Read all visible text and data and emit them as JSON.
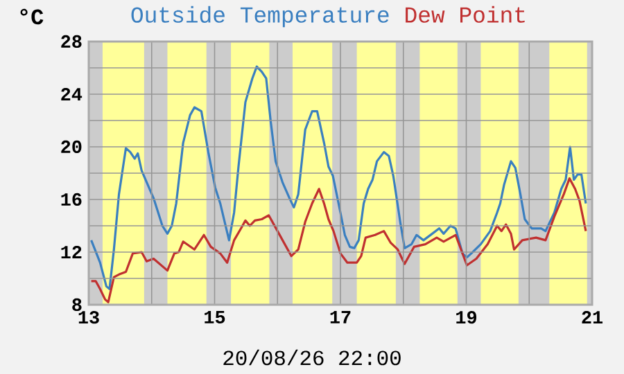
{
  "chart_data": {
    "type": "line",
    "ylabel": "°C",
    "annotations": [
      "20/08/26 22:00"
    ],
    "legend": "top",
    "grid": true,
    "xlim": [
      13,
      21
    ],
    "ylim": [
      8,
      28
    ],
    "xticks": [
      13,
      {
        "value": 14,
        "label": null
      },
      15,
      {
        "value": 16,
        "label": null
      },
      17,
      {
        "value": 18,
        "label": null
      },
      19,
      {
        "value": 20,
        "label": null
      },
      21
    ],
    "yticks": [
      8,
      {
        "value": 10,
        "label": null
      },
      12,
      {
        "value": 14,
        "label": null
      },
      16,
      {
        "value": 18,
        "label": null
      },
      20,
      {
        "value": 22,
        "label": null
      },
      24,
      {
        "value": 26,
        "label": null
      },
      28
    ],
    "bands": [
      {
        "axis": "x",
        "from": 13.22,
        "to": 13.88,
        "color": "#ffff99"
      },
      {
        "axis": "x",
        "from": 14.25,
        "to": 14.87,
        "color": "#ffff99"
      },
      {
        "axis": "x",
        "from": 15.26,
        "to": 15.87,
        "color": "#ffff99"
      },
      {
        "axis": "x",
        "from": 16.24,
        "to": 16.87,
        "color": "#ffff99"
      },
      {
        "axis": "x",
        "from": 17.26,
        "to": 17.88,
        "color": "#ffff99"
      },
      {
        "axis": "x",
        "from": 18.26,
        "to": 18.86,
        "color": "#ffff99"
      },
      {
        "axis": "x",
        "from": 19.23,
        "to": 19.83,
        "color": "#ffff99"
      },
      {
        "axis": "x",
        "from": 20.32,
        "to": 20.92,
        "color": "#ffff99"
      }
    ],
    "series": [
      {
        "name": "Outside Temperature",
        "color": "#3a7fc0",
        "x": [
          13.04,
          13.18,
          13.28,
          13.33,
          13.4,
          13.48,
          13.59,
          13.66,
          13.73,
          13.78,
          13.84,
          14.03,
          14.17,
          14.25,
          14.32,
          14.39,
          14.5,
          14.61,
          14.68,
          14.79,
          14.9,
          15.01,
          15.09,
          15.16,
          15.23,
          15.31,
          15.38,
          15.49,
          15.6,
          15.67,
          15.75,
          15.82,
          15.89,
          15.97,
          16.08,
          16.19,
          16.26,
          16.33,
          16.44,
          16.55,
          16.63,
          16.74,
          16.81,
          16.88,
          17.0,
          17.07,
          17.15,
          17.22,
          17.29,
          17.37,
          17.44,
          17.51,
          17.58,
          17.69,
          17.77,
          17.84,
          17.95,
          18.02,
          18.13,
          18.21,
          18.32,
          18.46,
          18.57,
          18.64,
          18.75,
          18.83,
          18.94,
          19.01,
          19.08,
          19.23,
          19.38,
          19.49,
          19.54,
          19.6,
          19.71,
          19.78,
          19.86,
          19.93,
          20.04,
          20.19,
          20.26,
          20.4,
          20.51,
          20.58,
          20.65,
          20.71,
          20.77,
          20.83,
          20.9
        ],
        "values": [
          12.9,
          11.2,
          9.4,
          9.2,
          12.2,
          16.4,
          19.9,
          19.6,
          19.1,
          19.5,
          18.2,
          16.1,
          14.0,
          13.4,
          14.0,
          15.7,
          20.3,
          22.4,
          23.0,
          22.7,
          19.6,
          16.9,
          15.7,
          14.3,
          12.9,
          15.0,
          18.5,
          23.4,
          25.2,
          26.1,
          25.7,
          25.2,
          22.0,
          18.9,
          17.3,
          16.1,
          15.4,
          16.4,
          21.3,
          22.7,
          22.7,
          20.3,
          18.5,
          17.8,
          15.0,
          13.3,
          12.4,
          12.3,
          12.9,
          15.7,
          16.8,
          17.5,
          18.9,
          19.6,
          19.3,
          17.8,
          14.3,
          12.3,
          12.6,
          13.3,
          12.9,
          13.4,
          13.8,
          13.4,
          14.0,
          13.8,
          11.9,
          11.6,
          11.9,
          12.6,
          13.6,
          15.0,
          15.7,
          17.1,
          18.9,
          18.4,
          16.4,
          14.5,
          13.8,
          13.8,
          13.6,
          15.0,
          16.8,
          17.5,
          20.0,
          17.5,
          17.9,
          17.9,
          15.7
        ]
      },
      {
        "name": "Dew Point",
        "color": "#c03030",
        "x": [
          13.04,
          13.11,
          13.18,
          13.26,
          13.31,
          13.4,
          13.48,
          13.59,
          13.7,
          13.84,
          13.92,
          14.03,
          14.25,
          14.36,
          14.43,
          14.5,
          14.68,
          14.83,
          14.94,
          15.09,
          15.2,
          15.31,
          15.42,
          15.49,
          15.56,
          15.64,
          15.75,
          15.86,
          16.0,
          16.22,
          16.33,
          16.44,
          16.55,
          16.66,
          16.74,
          16.81,
          16.89,
          17.0,
          17.11,
          17.26,
          17.33,
          17.4,
          17.55,
          17.69,
          17.8,
          17.91,
          18.02,
          18.17,
          18.35,
          18.53,
          18.64,
          18.83,
          19.01,
          19.16,
          19.34,
          19.49,
          19.56,
          19.63,
          19.71,
          19.76,
          19.89,
          20.11,
          20.26,
          20.4,
          20.55,
          20.64,
          20.73,
          20.8,
          20.9
        ],
        "values": [
          9.8,
          9.8,
          9.2,
          8.4,
          8.2,
          10.1,
          10.3,
          10.5,
          11.9,
          12.0,
          11.3,
          11.5,
          10.6,
          11.9,
          12.0,
          12.8,
          12.2,
          13.3,
          12.4,
          11.9,
          11.2,
          12.9,
          13.8,
          14.4,
          14.0,
          14.4,
          14.5,
          14.8,
          13.6,
          11.7,
          12.2,
          14.3,
          15.7,
          16.8,
          15.7,
          14.5,
          13.6,
          11.9,
          11.2,
          11.2,
          11.7,
          13.1,
          13.3,
          13.6,
          12.7,
          12.2,
          11.1,
          12.4,
          12.6,
          13.1,
          12.8,
          13.3,
          11.0,
          11.5,
          12.6,
          14.0,
          13.6,
          14.1,
          13.4,
          12.2,
          12.9,
          13.1,
          12.9,
          14.7,
          16.4,
          17.6,
          16.8,
          15.9,
          13.6
        ]
      }
    ]
  }
}
